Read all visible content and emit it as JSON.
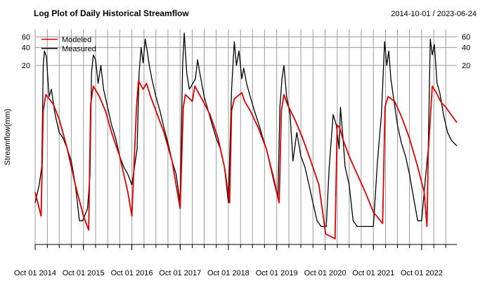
{
  "chart_data": {
    "type": "line",
    "title": "Log Plot of Daily Historical Streamflow",
    "date_range": "2014-10-01 / 2023-06-24",
    "ylabel": "Streamflow(mm)",
    "xlabel": "",
    "x_range": [
      "2014-10-01",
      "2023-06-24"
    ],
    "y_scale": "log",
    "ylim": [
      0.02,
      80
    ],
    "y_ticks": [
      20,
      40,
      60
    ],
    "y_tick_labels": [
      "20",
      "40",
      "60"
    ],
    "x_ticks": [
      "2014-10-01",
      "2015-10-01",
      "2016-10-01",
      "2017-10-01",
      "2018-10-01",
      "2019-10-01",
      "2020-10-01",
      "2021-10-01",
      "2022-10-01"
    ],
    "x_tick_labels": [
      "Oct 01 2014",
      "Oct 01 2015",
      "Oct 01 2016",
      "Oct 01 2017",
      "Oct 01 2018",
      "Oct 01 2019",
      "Oct 01 2020",
      "Oct 01 2021",
      "Oct 01 2022"
    ],
    "grid": true,
    "legend_position": "top-left",
    "series": [
      {
        "name": "Modeled",
        "color": "#e00000",
        "x": [
          "2014-10-01",
          "2014-11-15",
          "2014-12-01",
          "2014-12-20",
          "2015-02-15",
          "2015-04-01",
          "2015-06-01",
          "2015-08-01",
          "2015-10-01",
          "2015-11-10",
          "2015-11-25",
          "2015-12-15",
          "2016-01-30",
          "2016-03-15",
          "2016-05-01",
          "2016-07-01",
          "2016-09-01",
          "2016-10-01",
          "2016-11-05",
          "2016-11-20",
          "2016-12-25",
          "2017-01-20",
          "2017-02-20",
          "2017-04-01",
          "2017-06-01",
          "2017-08-01",
          "2017-10-01",
          "2017-10-25",
          "2017-11-10",
          "2018-01-01",
          "2018-01-20",
          "2018-03-15",
          "2018-05-15",
          "2018-07-15",
          "2018-09-01",
          "2018-10-10",
          "2018-10-25",
          "2018-11-15",
          "2019-01-10",
          "2019-02-01",
          "2019-03-15",
          "2019-05-15",
          "2019-07-15",
          "2019-09-10",
          "2019-10-20",
          "2019-11-05",
          "2019-11-25",
          "2019-12-20",
          "2020-02-15",
          "2020-04-15",
          "2020-06-15",
          "2020-08-15",
          "2020-10-05",
          "2020-12-15",
          "2020-12-31",
          "2021-01-20",
          "2021-02-10",
          "2021-04-01",
          "2021-06-01",
          "2021-08-01",
          "2021-10-01",
          "2021-12-10",
          "2021-12-28",
          "2022-01-20",
          "2022-03-10",
          "2022-05-01",
          "2022-07-01",
          "2022-09-01",
          "2022-10-20",
          "2022-11-10",
          "2022-11-20",
          "2022-12-20",
          "2023-01-20",
          "2023-02-20",
          "2023-04-01",
          "2023-06-24"
        ],
        "y": [
          0.15,
          0.06,
          3.5,
          6.5,
          4.5,
          2.5,
          0.8,
          0.2,
          0.06,
          0.035,
          4.5,
          9.0,
          6.0,
          3.5,
          1.5,
          0.6,
          0.15,
          0.06,
          4.0,
          11.0,
          8.0,
          10.0,
          6.0,
          3.5,
          1.5,
          0.5,
          0.08,
          4.0,
          6.5,
          5.0,
          9.0,
          5.5,
          3.0,
          1.2,
          0.4,
          0.1,
          3.5,
          5.5,
          7.0,
          5.0,
          3.5,
          1.8,
          0.8,
          0.25,
          0.1,
          3.5,
          6.5,
          4.5,
          2.5,
          1.2,
          0.5,
          0.2,
          0.03,
          0.025,
          2.0,
          1.8,
          1.2,
          0.6,
          0.3,
          0.15,
          0.07,
          0.045,
          4.0,
          6.0,
          5.0,
          2.8,
          1.2,
          0.4,
          0.15,
          0.04,
          0.7,
          9.0,
          7.0,
          5.0,
          4.0,
          2.2
        ]
      },
      {
        "name": "Measured",
        "color": "#000000",
        "x": [
          "2014-10-01",
          "2014-11-01",
          "2014-11-20",
          "2014-12-01",
          "2014-12-10",
          "2014-12-25",
          "2015-01-15",
          "2015-02-01",
          "2015-03-01",
          "2015-04-01",
          "2015-05-01",
          "2015-06-01",
          "2015-07-01",
          "2015-08-01",
          "2015-09-01",
          "2015-09-25",
          "2015-11-01",
          "2015-11-20",
          "2015-12-01",
          "2015-12-15",
          "2016-01-01",
          "2016-01-20",
          "2016-02-10",
          "2016-03-01",
          "2016-04-01",
          "2016-05-01",
          "2016-06-01",
          "2016-07-01",
          "2016-08-01",
          "2016-09-01",
          "2016-10-01",
          "2016-11-10",
          "2016-11-25",
          "2016-12-10",
          "2016-12-25",
          "2017-01-10",
          "2017-01-25",
          "2017-02-10",
          "2017-03-01",
          "2017-04-01",
          "2017-05-01",
          "2017-06-01",
          "2017-07-01",
          "2017-08-01",
          "2017-09-01",
          "2017-10-01",
          "2017-10-20",
          "2017-11-01",
          "2017-11-20",
          "2017-12-10",
          "2018-01-05",
          "2018-01-25",
          "2018-02-10",
          "2018-03-01",
          "2018-04-01",
          "2018-05-01",
          "2018-06-01",
          "2018-07-01",
          "2018-08-01",
          "2018-09-01",
          "2018-10-01",
          "2018-10-25",
          "2018-11-15",
          "2018-12-01",
          "2018-12-20",
          "2019-01-10",
          "2019-01-25",
          "2019-02-15",
          "2019-03-15",
          "2019-04-15",
          "2019-05-15",
          "2019-06-15",
          "2019-07-15",
          "2019-08-15",
          "2019-09-15",
          "2019-10-10",
          "2019-10-25",
          "2019-11-10",
          "2019-11-25",
          "2019-12-15",
          "2020-01-10",
          "2020-02-01",
          "2020-03-01",
          "2020-04-01",
          "2020-05-01",
          "2020-06-01",
          "2020-07-01",
          "2020-08-01",
          "2020-09-01",
          "2020-09-20",
          "2020-10-10",
          "2020-11-01",
          "2020-12-01",
          "2020-12-25",
          "2021-01-15",
          "2021-01-25",
          "2021-02-10",
          "2021-03-01",
          "2021-04-01",
          "2021-05-01",
          "2021-06-01",
          "2021-07-01",
          "2021-08-01",
          "2021-09-01",
          "2021-10-01",
          "2021-11-01",
          "2021-12-01",
          "2021-12-25",
          "2022-01-10",
          "2022-01-25",
          "2022-02-10",
          "2022-03-01",
          "2022-04-01",
          "2022-05-01",
          "2022-06-01",
          "2022-07-01",
          "2022-08-01",
          "2022-09-01",
          "2022-10-01",
          "2022-11-01",
          "2022-11-20",
          "2022-12-05",
          "2022-12-20",
          "2023-01-05",
          "2023-01-25",
          "2023-02-15",
          "2023-03-15",
          "2023-04-15",
          "2023-05-15",
          "2023-06-24"
        ],
        "y": [
          0.1,
          0.2,
          0.4,
          20,
          35,
          28,
          6,
          8,
          3,
          1.5,
          1.2,
          0.8,
          0.5,
          0.2,
          0.05,
          0.05,
          0.08,
          0.3,
          15,
          30,
          25,
          10,
          20,
          8,
          4,
          2,
          1.2,
          0.6,
          0.4,
          0.3,
          0.2,
          0.8,
          15,
          40,
          22,
          55,
          35,
          20,
          12,
          6,
          3.5,
          1.8,
          1.0,
          0.5,
          0.3,
          0.1,
          20,
          70,
          15,
          8,
          10,
          12,
          25,
          14,
          6,
          3.5,
          2,
          1.2,
          0.8,
          0.4,
          0.1,
          8,
          50,
          20,
          35,
          12,
          18,
          10,
          6,
          3.5,
          2.2,
          1.3,
          0.8,
          0.4,
          0.2,
          0.12,
          4,
          12,
          20,
          6,
          3,
          0.5,
          1.5,
          0.6,
          0.4,
          0.2,
          0.1,
          0.05,
          0.04,
          0.04,
          0.04,
          0.4,
          3,
          2,
          0.8,
          4,
          1.5,
          0.4,
          0.2,
          0.05,
          0.04,
          0.04,
          0.04,
          0.04,
          0.04,
          0.5,
          3,
          50,
          20,
          35,
          12,
          6,
          2,
          1.0,
          0.6,
          0.3,
          0.12,
          0.05,
          0.05,
          0.3,
          0.8,
          55,
          30,
          45,
          10,
          7,
          3,
          1.5,
          1.1,
          0.9
        ]
      }
    ]
  }
}
